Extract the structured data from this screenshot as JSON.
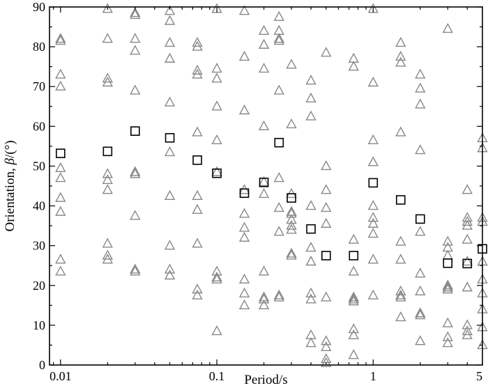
{
  "chart_data": {
    "type": "scatter",
    "xlabel": "Period/s",
    "ylabel_prefix": "Orientation, ",
    "ylabel_symbol": "β",
    "ylabel_suffix": "/(°)",
    "x_scale": "log",
    "xlim": [
      0.0085,
      5
    ],
    "ylim": [
      0,
      90
    ],
    "x_ticks": [
      0.01,
      0.1,
      1,
      5
    ],
    "x_tick_labels": [
      "0.01",
      "0.1",
      "1",
      "5"
    ],
    "y_ticks": [
      0,
      10,
      20,
      30,
      40,
      50,
      60,
      70,
      80,
      90
    ],
    "y_tick_labels": [
      "0",
      "10",
      "20",
      "30",
      "40",
      "50",
      "60",
      "70",
      "80",
      "90"
    ],
    "grid": false,
    "colors": {
      "triangles": "#888888",
      "squares": "#000000"
    },
    "series": [
      {
        "marker": "triangle",
        "points": [
          [
            0.01,
            82
          ],
          [
            0.01,
            81.5
          ],
          [
            0.01,
            73
          ],
          [
            0.01,
            70
          ],
          [
            0.01,
            49.5
          ],
          [
            0.01,
            47
          ],
          [
            0.01,
            42
          ],
          [
            0.01,
            38.5
          ],
          [
            0.01,
            26.5
          ],
          [
            0.01,
            23.5
          ],
          [
            0.02,
            89.5
          ],
          [
            0.02,
            82
          ],
          [
            0.02,
            72
          ],
          [
            0.02,
            71
          ],
          [
            0.02,
            48
          ],
          [
            0.02,
            46.5
          ],
          [
            0.02,
            44
          ],
          [
            0.02,
            30.5
          ],
          [
            0.02,
            27.5
          ],
          [
            0.02,
            26.5
          ],
          [
            0.03,
            88.5
          ],
          [
            0.03,
            88
          ],
          [
            0.03,
            82
          ],
          [
            0.03,
            79
          ],
          [
            0.03,
            69
          ],
          [
            0.03,
            48.5
          ],
          [
            0.03,
            48
          ],
          [
            0.03,
            37.5
          ],
          [
            0.03,
            24
          ],
          [
            0.03,
            23.5
          ],
          [
            0.05,
            89
          ],
          [
            0.05,
            86.5
          ],
          [
            0.05,
            81
          ],
          [
            0.05,
            77
          ],
          [
            0.05,
            66
          ],
          [
            0.05,
            53.5
          ],
          [
            0.05,
            42.5
          ],
          [
            0.05,
            30
          ],
          [
            0.05,
            24
          ],
          [
            0.05,
            22.5
          ],
          [
            0.075,
            81
          ],
          [
            0.075,
            80
          ],
          [
            0.075,
            74
          ],
          [
            0.075,
            73
          ],
          [
            0.075,
            58.5
          ],
          [
            0.075,
            42.5
          ],
          [
            0.075,
            39
          ],
          [
            0.075,
            30.5
          ],
          [
            0.075,
            19
          ],
          [
            0.075,
            17.5
          ],
          [
            0.1,
            89.5
          ],
          [
            0.1,
            74.5
          ],
          [
            0.1,
            72
          ],
          [
            0.1,
            65
          ],
          [
            0.1,
            56.5
          ],
          [
            0.1,
            48.5
          ],
          [
            0.1,
            23.5
          ],
          [
            0.1,
            22
          ],
          [
            0.1,
            21.5
          ],
          [
            0.1,
            8.5
          ],
          [
            0.15,
            89
          ],
          [
            0.15,
            77.5
          ],
          [
            0.15,
            64
          ],
          [
            0.15,
            44
          ],
          [
            0.15,
            38
          ],
          [
            0.15,
            34.5
          ],
          [
            0.15,
            32
          ],
          [
            0.15,
            21.5
          ],
          [
            0.15,
            18
          ],
          [
            0.15,
            15
          ],
          [
            0.2,
            84
          ],
          [
            0.2,
            80.5
          ],
          [
            0.2,
            74.5
          ],
          [
            0.2,
            60
          ],
          [
            0.2,
            46
          ],
          [
            0.2,
            43
          ],
          [
            0.2,
            23.5
          ],
          [
            0.2,
            17
          ],
          [
            0.2,
            16.5
          ],
          [
            0.2,
            15
          ],
          [
            0.25,
            87.5
          ],
          [
            0.25,
            84
          ],
          [
            0.25,
            82
          ],
          [
            0.25,
            81.5
          ],
          [
            0.25,
            69
          ],
          [
            0.25,
            47
          ],
          [
            0.25,
            39.5
          ],
          [
            0.25,
            33.5
          ],
          [
            0.25,
            17.5
          ],
          [
            0.25,
            17
          ],
          [
            0.3,
            75.5
          ],
          [
            0.3,
            60.5
          ],
          [
            0.3,
            43
          ],
          [
            0.3,
            38.5
          ],
          [
            0.3,
            38
          ],
          [
            0.3,
            36.5
          ],
          [
            0.3,
            35
          ],
          [
            0.3,
            34
          ],
          [
            0.3,
            28
          ],
          [
            0.3,
            27.5
          ],
          [
            0.4,
            71.5
          ],
          [
            0.4,
            67
          ],
          [
            0.4,
            62.5
          ],
          [
            0.4,
            40
          ],
          [
            0.4,
            29.5
          ],
          [
            0.4,
            26
          ],
          [
            0.4,
            18
          ],
          [
            0.4,
            16.5
          ],
          [
            0.4,
            7.5
          ],
          [
            0.4,
            5.5
          ],
          [
            0.5,
            78.5
          ],
          [
            0.5,
            50
          ],
          [
            0.5,
            44
          ],
          [
            0.5,
            39.5
          ],
          [
            0.5,
            35.5
          ],
          [
            0.5,
            17
          ],
          [
            0.5,
            6
          ],
          [
            0.5,
            4.5
          ],
          [
            0.5,
            1.5
          ],
          [
            0.5,
            0.5
          ],
          [
            0.75,
            77
          ],
          [
            0.75,
            75
          ],
          [
            0.75,
            31.5
          ],
          [
            0.75,
            23.5
          ],
          [
            0.75,
            17
          ],
          [
            0.75,
            16.5
          ],
          [
            0.75,
            16
          ],
          [
            0.75,
            9
          ],
          [
            0.75,
            7.5
          ],
          [
            0.75,
            2.5
          ],
          [
            1,
            89.5
          ],
          [
            1,
            71
          ],
          [
            1,
            56.5
          ],
          [
            1,
            51
          ],
          [
            1,
            40
          ],
          [
            1,
            37
          ],
          [
            1,
            35.5
          ],
          [
            1,
            33
          ],
          [
            1,
            26.5
          ],
          [
            1,
            17.5
          ],
          [
            1.5,
            81
          ],
          [
            1.5,
            77.5
          ],
          [
            1.5,
            76
          ],
          [
            1.5,
            58.5
          ],
          [
            1.5,
            31
          ],
          [
            1.5,
            26.5
          ],
          [
            1.5,
            18.5
          ],
          [
            1.5,
            17.5
          ],
          [
            1.5,
            17
          ],
          [
            1.5,
            12
          ],
          [
            2,
            73
          ],
          [
            2,
            69.5
          ],
          [
            2,
            65.5
          ],
          [
            2,
            54
          ],
          [
            2,
            33.5
          ],
          [
            2,
            23
          ],
          [
            2,
            18.5
          ],
          [
            2,
            13
          ],
          [
            2,
            12.5
          ],
          [
            2,
            6
          ],
          [
            3,
            84.5
          ],
          [
            3,
            31
          ],
          [
            3,
            29.5
          ],
          [
            3,
            27.5
          ],
          [
            3,
            20
          ],
          [
            3,
            19.5
          ],
          [
            3,
            19
          ],
          [
            3,
            10.5
          ],
          [
            3,
            7
          ],
          [
            3,
            5.5
          ],
          [
            4,
            44
          ],
          [
            4,
            37
          ],
          [
            4,
            36
          ],
          [
            4,
            35
          ],
          [
            4,
            31.5
          ],
          [
            4,
            26
          ],
          [
            4,
            19.5
          ],
          [
            4,
            10
          ],
          [
            4,
            8.5
          ],
          [
            4,
            7.5
          ],
          [
            5,
            57
          ],
          [
            5,
            54.5
          ],
          [
            5,
            37
          ],
          [
            5,
            36
          ],
          [
            5,
            26
          ],
          [
            5,
            21.5
          ],
          [
            5,
            18
          ],
          [
            5,
            14
          ],
          [
            5,
            9.5
          ],
          [
            5,
            5
          ]
        ]
      },
      {
        "marker": "square",
        "points": [
          [
            0.01,
            53.2
          ],
          [
            0.02,
            53.7
          ],
          [
            0.03,
            58.8
          ],
          [
            0.05,
            57.1
          ],
          [
            0.075,
            51.5
          ],
          [
            0.1,
            48.2
          ],
          [
            0.15,
            43.2
          ],
          [
            0.2,
            45.9
          ],
          [
            0.25,
            55.9
          ],
          [
            0.3,
            42
          ],
          [
            0.4,
            34.2
          ],
          [
            0.5,
            27.5
          ],
          [
            0.75,
            27.5
          ],
          [
            1,
            45.8
          ],
          [
            1.5,
            41.5
          ],
          [
            2,
            36.7
          ],
          [
            3,
            25.6
          ],
          [
            4,
            25.5
          ],
          [
            5,
            29.2
          ]
        ]
      }
    ]
  }
}
